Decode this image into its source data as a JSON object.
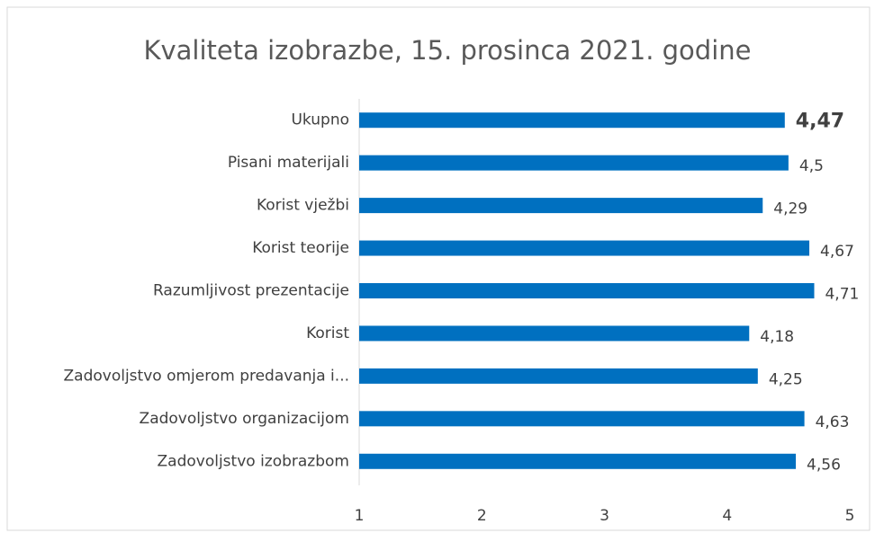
{
  "chart_data": {
    "type": "barh",
    "title": "Kvaliteta izobrazbe,  15. prosinca 2021. godine",
    "categories": [
      "Ukupno",
      "Pisani materijali",
      "Korist vježbi",
      "Korist teorije",
      "Razumljivost prezentacije",
      "Korist",
      "Zadovoljstvo omjerom predavanja i...",
      "Zadovoljstvo organizacijom",
      "Zadovoljstvo izobrazbom"
    ],
    "values": [
      4.47,
      4.5,
      4.29,
      4.67,
      4.71,
      4.18,
      4.25,
      4.63,
      4.56
    ],
    "value_labels": [
      "4,47",
      "4,5",
      "4,29",
      "4,67",
      "4,71",
      "4,18",
      "4,25",
      "4,63",
      "4,56"
    ],
    "color": "#0070c0",
    "xlim": [
      1,
      5
    ],
    "xticks": [
      1,
      2,
      3,
      4,
      5
    ],
    "grid": false
  }
}
